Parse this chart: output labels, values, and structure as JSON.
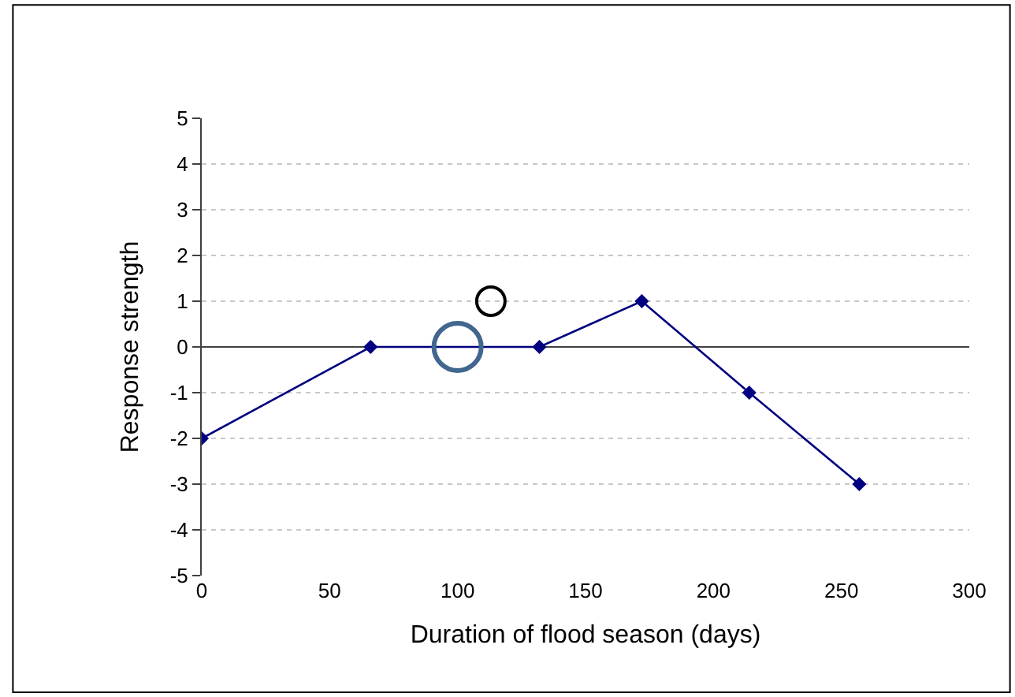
{
  "chart_data": {
    "type": "line",
    "xlabel": "Duration of flood season (days)",
    "ylabel": "Response strength",
    "x": [
      0,
      66,
      132,
      172,
      214,
      257
    ],
    "series": [
      {
        "color": "#000080",
        "marker": "diamond",
        "values": [
          -2,
          0,
          0,
          1,
          -1,
          -3
        ]
      },
      {
        "type": "scatter",
        "color": "#41678f",
        "marker": "circle",
        "x": [
          100
        ],
        "values": [
          0
        ]
      },
      {
        "type": "scatter",
        "color": "#000000",
        "marker": "circle",
        "x": [
          113
        ],
        "values": [
          1
        ]
      }
    ],
    "xlim": [
      0,
      300
    ],
    "xticks": [
      0,
      50,
      100,
      150,
      200,
      250,
      300
    ],
    "ylim": [
      -5,
      5
    ],
    "yticks": [
      -5,
      -4,
      -3,
      -2,
      -1,
      0,
      1,
      2,
      3,
      4,
      5
    ],
    "grid": "y"
  }
}
